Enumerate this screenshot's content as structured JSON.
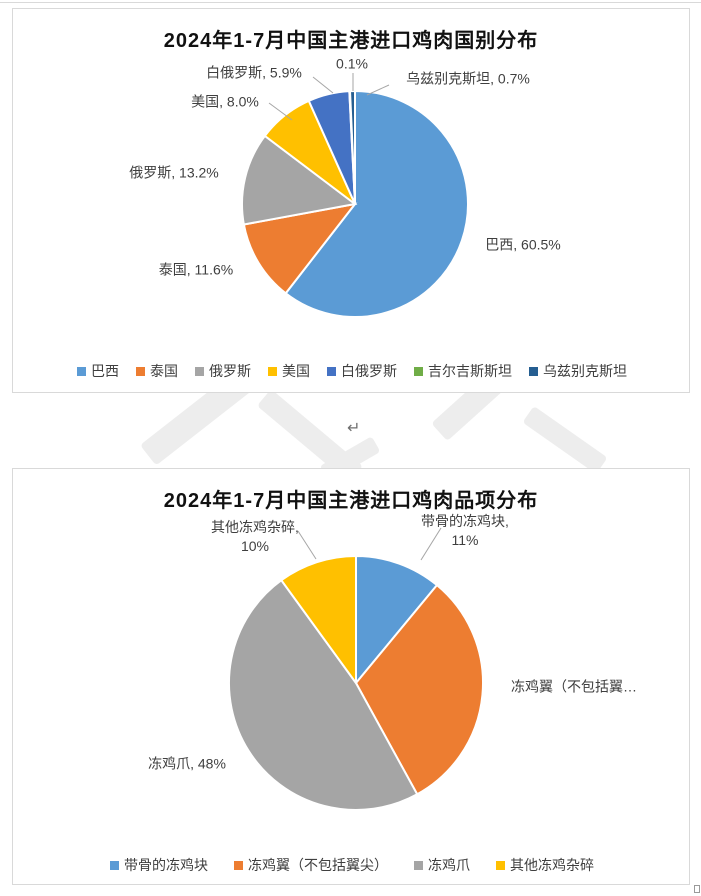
{
  "document": {
    "paragraph_mark": "↵"
  },
  "chart_data": [
    {
      "type": "pie",
      "title": "2024年1-7月中国主港进口鸡肉国别分布",
      "categories": [
        "巴西",
        "泰国",
        "俄罗斯",
        "美国",
        "白俄罗斯",
        "吉尔吉斯斯坦",
        "乌兹别克斯坦"
      ],
      "values": [
        60.5,
        11.6,
        13.2,
        8.0,
        5.9,
        0.1,
        0.7
      ],
      "unit": "%",
      "colors": [
        "#5B9BD5",
        "#ED7D31",
        "#A5A5A5",
        "#FFC000",
        "#4472C4",
        "#70AD47",
        "#255E91"
      ],
      "point_labels": [
        {
          "line1": "巴西, 60.5%"
        },
        {
          "line1": "泰国, 11.6%"
        },
        {
          "line1": "俄罗斯, 13.2%"
        },
        {
          "line1": "美国, 8.0%"
        },
        {
          "line1": "白俄罗斯, 5.9%"
        },
        {
          "line1": "0.1%"
        },
        {
          "line1": "乌兹别克斯坦, 0.7%"
        }
      ],
      "legend_position": "bottom",
      "start_angle_deg": 0,
      "direction": "clockwise"
    },
    {
      "type": "pie",
      "title": "2024年1-7月中国主港进口鸡肉品项分布",
      "categories": [
        "带骨的冻鸡块",
        "冻鸡翼（不包括翼尖）",
        "冻鸡爪",
        "其他冻鸡杂碎"
      ],
      "values": [
        11,
        31,
        48,
        10
      ],
      "unit": "%",
      "colors": [
        "#5B9BD5",
        "#ED7D31",
        "#A5A5A5",
        "#FFC000"
      ],
      "point_labels": [
        {
          "line1": "带骨的冻鸡块,",
          "line2": "11%"
        },
        {
          "line1": "冻鸡翼（不包括翼…"
        },
        {
          "line1": "冻鸡爪, 48%"
        },
        {
          "line1": "其他冻鸡杂碎,",
          "line2": "10%"
        }
      ],
      "legend_position": "bottom",
      "start_angle_deg": 0,
      "direction": "clockwise"
    }
  ]
}
